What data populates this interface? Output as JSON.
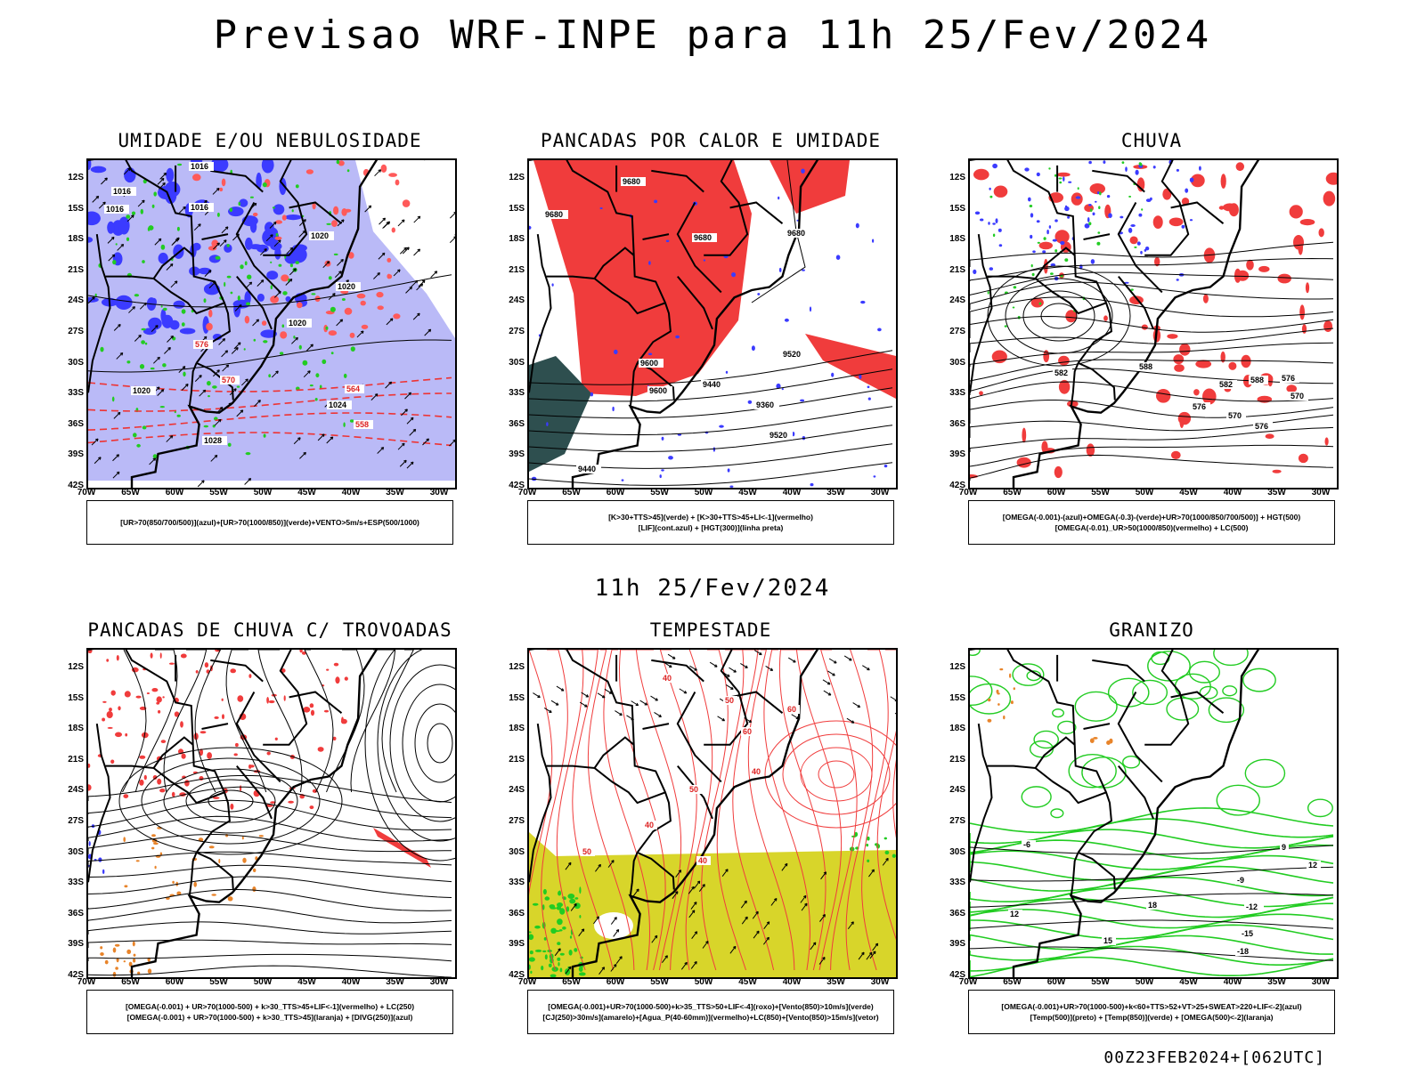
{
  "title": "Previsao WRF-INPE  para 11h 25/Fev/2024",
  "mid_title": "11h 25/Fev/2024",
  "footer": "00Z23FEB2024+[062UTC]",
  "axes": {
    "lat_labels": [
      "12S",
      "15S",
      "18S",
      "21S",
      "24S",
      "27S",
      "30S",
      "33S",
      "36S",
      "39S",
      "42S"
    ],
    "lon_labels": [
      "70W",
      "65W",
      "60W",
      "55W",
      "50W",
      "45W",
      "40W",
      "35W",
      "30W"
    ]
  },
  "colors": {
    "blue": "#3b3bff",
    "light_blue": "#a9a9f5",
    "green": "#22cc22",
    "red": "#f03c3c",
    "orange": "#e8842a",
    "yellow": "#d8d52a",
    "dark_teal": "#2e4f4f"
  },
  "panels": [
    {
      "id": "umidade",
      "title": "UMIDADE E/OU NEBULOSIDADE",
      "legend": [
        "[UR>70(850/700/500)](azul)+[UR>70(1000/850)](verde)+VENTO>5m/s+ESP(500/1000)"
      ],
      "contour_labels": [
        "1016",
        "1016",
        "1016",
        "1016",
        "1020",
        "1020",
        "1020",
        "1020",
        "1024",
        "1028",
        "576",
        "570",
        "564",
        "558"
      ]
    },
    {
      "id": "pancadas-calor",
      "title": "PANCADAS POR CALOR E UMIDADE",
      "legend": [
        "[K>30+TTS>45](verde) + [K>30+TTS>45+LI<-1](vermelho)",
        "[LIF](cont.azul) + [HGT(300)](linha preta)"
      ],
      "contour_labels": [
        "9680",
        "9680",
        "9680",
        "9680",
        "9600",
        "9520",
        "9440",
        "9360",
        "9520",
        "9440",
        "9600"
      ]
    },
    {
      "id": "chuva",
      "title": "CHUVA",
      "legend": [
        "[OMEGA(-0.001)-(azul)+OMEGA(-0.3)-(verde)+UR>70(1000/850/700/500)] + HGT(500)",
        "[OMEGA(-0.01)_UR>50(1000/850)(vermelho) + LC(500)"
      ],
      "contour_labels": [
        "588",
        "582",
        "576",
        "570",
        "588",
        "582",
        "576",
        "570",
        "576"
      ]
    },
    {
      "id": "pancadas-trovoadas",
      "title": "PANCADAS DE CHUVA C/ TROVOADAS",
      "legend": [
        "[OMEGA(-0.001) + UR>70(1000-500) + k>30_TTS>45+LIF<-1](vermelho) + LC(250)",
        "[OMEGA(-0.001) + UR>70(1000-500) + k>30_TTS>45](laranja) + [DIVG(250)](azul)"
      ],
      "contour_labels": []
    },
    {
      "id": "tempestade",
      "title": "TEMPESTADE",
      "legend": [
        "[OMEGA(-0.001)+UR>70(1000-500)+k>35_TTS>50+LIF<-4](roxo)+[Vento(850)>10m/s](verde)",
        "[CJ(250)>30m/s](amarelo)+[Agua_P(40-60mm)](vermelho)+LC(850)+[Vento(850)>15m/s](vetor)"
      ],
      "contour_labels": [
        "40",
        "50",
        "60",
        "40",
        "50",
        "40",
        "50",
        "40",
        "60"
      ]
    },
    {
      "id": "granizo",
      "title": "GRANIZO",
      "legend": [
        "[OMEGA(-0.001)+UR>70(1000-500)+k<60+TTS>52+VT>25+SWEAT>220+LIF<-2](azul)",
        "[Temp(500)](preto) + [Temp(850)](verde) + [OMEGA(500)<-2](laranja)"
      ],
      "contour_labels": [
        "-6",
        "-9",
        "-12",
        "-15",
        "-18",
        "15",
        "18",
        "12",
        "9",
        "12"
      ]
    }
  ]
}
